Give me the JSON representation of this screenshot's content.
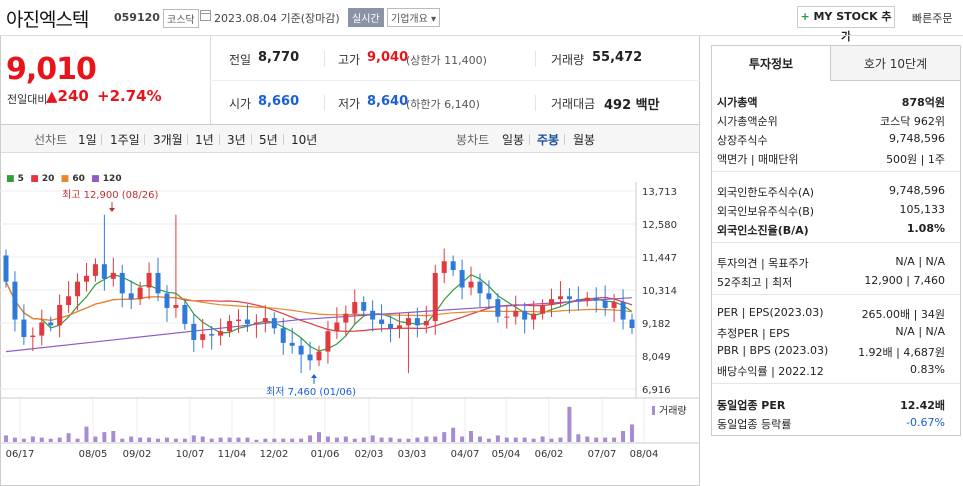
{
  "header": {
    "stock_name": "아진엑스텍",
    "stock_code": "059120",
    "market": "코스닥",
    "date_text": "2023.08.04 기준(장마감)",
    "realtime_label": "실시간",
    "company_label": "기업개요 ▾",
    "mystock_label": "MY STOCK 추가",
    "quick_order_label": "빠른주문"
  },
  "price": {
    "current": "9,010",
    "change_label": "전일대비",
    "change_value": "▲240",
    "change_pct": "+2.74%"
  },
  "quote": {
    "prev_close": {
      "label": "전일",
      "value": "8,770"
    },
    "high": {
      "label": "고가",
      "value": "9,040",
      "sub": "(상한가 11,400)"
    },
    "volume": {
      "label": "거래량",
      "value": "55,472"
    },
    "open": {
      "label": "시가",
      "value": "8,660"
    },
    "low": {
      "label": "저가",
      "value": "8,640",
      "sub": "(하한가 6,140)"
    },
    "amount": {
      "label": "거래대금",
      "value": "492 백만"
    }
  },
  "period_bar": {
    "line_label": "선차트",
    "line_periods": [
      "1일",
      "1주일",
      "3개월",
      "1년",
      "3년",
      "5년",
      "10년"
    ],
    "candle_label": "봉차트",
    "candle_periods": [
      "일봉",
      "주봉",
      "월봉"
    ],
    "active_candle": "주봉"
  },
  "chart_data": {
    "type": "candlestick",
    "ma_legend": [
      {
        "name": "5",
        "color": "#2e9e3a"
      },
      {
        "name": "20",
        "color": "#e0393e"
      },
      {
        "name": "60",
        "color": "#e8862a"
      },
      {
        "name": "120",
        "color": "#8e5bc8"
      }
    ],
    "y_ticks": [
      "13,713",
      "12,580",
      "11,447",
      "10,314",
      "9,182",
      "8,049",
      "6,916"
    ],
    "y_range": [
      6916,
      13713
    ],
    "x_ticks": [
      "06/17",
      "08/05",
      "09/02",
      "10/07",
      "11/04",
      "12/02",
      "01/06",
      "02/03",
      "03/03",
      "04/07",
      "05/04",
      "06/02",
      "07/07",
      "08/04"
    ],
    "annotations": {
      "high": "최고 12,900 (08/26)",
      "low": "최저 7,460 (01/06)"
    },
    "volume_label": "거래량",
    "up_color": "#e0393e",
    "down_color": "#2f7ad8",
    "volume_color": "#a98bd2"
  },
  "invest": {
    "tab_invest": "투자정보",
    "tab_hoga": "호가 10단계",
    "rows1": [
      {
        "k": "시가총액",
        "v": "878억원",
        "bold": true
      },
      {
        "k": "시가총액순위",
        "v": "코스닥 962위"
      },
      {
        "k": "상장주식수",
        "v": "9,748,596"
      },
      {
        "k": "액면가 | 매매단위",
        "v": "500원 | 1주"
      }
    ],
    "rows2": [
      {
        "k": "외국인한도주식수(A)",
        "v": "9,748,596"
      },
      {
        "k": "외국인보유주식수(B)",
        "v": "105,133"
      },
      {
        "k": "외국인소진율(B/A)",
        "v": "1.08%",
        "bold": true
      }
    ],
    "rows3": [
      {
        "k": "투자의견 | 목표주가",
        "v": "N/A | N/A"
      },
      {
        "k": "52주최고 | 최저",
        "v": "12,900 | 7,460"
      }
    ],
    "rows4": [
      {
        "k": "PER | EPS(2023.03)",
        "v": "265.00배 | 34원"
      },
      {
        "k": "추정PER | EPS",
        "v": "N/A | N/A"
      },
      {
        "k": "PBR | BPS (2023.03)",
        "v": "1.92배 | 4,687원"
      },
      {
        "k": "배당수익률 | 2022.12",
        "v": "0.83%"
      }
    ],
    "rows5": [
      {
        "k": "동일업종 PER",
        "v": "12.42배",
        "bold": true
      },
      {
        "k": "동일업종 등락률",
        "v": "-0.67%",
        "blue": true
      }
    ]
  }
}
